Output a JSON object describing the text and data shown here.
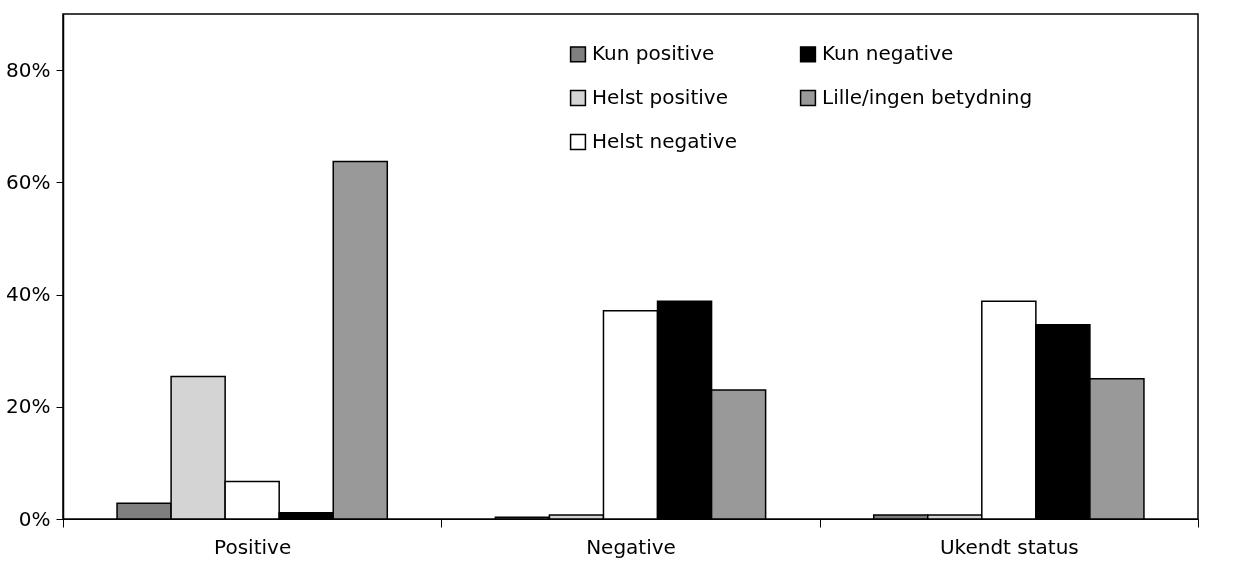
{
  "chart_data": {
    "type": "bar",
    "categories": [
      "Positive",
      "Negative",
      "Ukendt status"
    ],
    "series": [
      {
        "name": "Kun positive",
        "color": "#7f7f7f",
        "values": [
          2.8,
          0.3,
          0.7
        ]
      },
      {
        "name": "Helst positive",
        "color": "#d4d4d4",
        "values": [
          25.4,
          0.7,
          0.7
        ]
      },
      {
        "name": "Helst negative",
        "color": "#ffffff",
        "values": [
          6.7,
          37.1,
          38.8
        ]
      },
      {
        "name": "Kun negative",
        "color": "#000000",
        "values": [
          1.1,
          38.8,
          34.6
        ]
      },
      {
        "name": "Lille/ingen betydning",
        "color": "#999999",
        "values": [
          63.7,
          23.0,
          25.0
        ]
      }
    ],
    "ylim": [
      0,
      90
    ],
    "yticks": [
      {
        "value": 0,
        "label": "0%"
      },
      {
        "value": 20,
        "label": "20%"
      },
      {
        "value": 40,
        "label": "40%"
      },
      {
        "value": 60,
        "label": "60%"
      },
      {
        "value": 80,
        "label": "80%"
      }
    ],
    "grid": false,
    "legend": "top right"
  }
}
